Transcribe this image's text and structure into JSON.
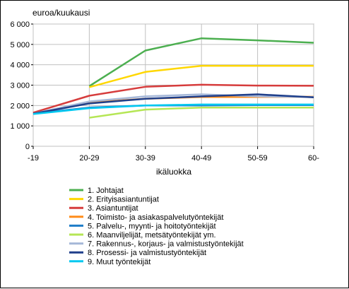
{
  "chart_data": {
    "type": "line",
    "ylabel": "euroa/kuukausi",
    "xlabel": "ikäluokka",
    "categories": [
      "-19",
      "20-29",
      "30-39",
      "40-49",
      "50-59",
      "60-"
    ],
    "ylim": [
      0,
      6000
    ],
    "yticks": [
      "0",
      "1 000",
      "2 000",
      "3 000",
      "4 000",
      "5 000",
      "6 000"
    ],
    "ytick_values": [
      0,
      1000,
      2000,
      3000,
      4000,
      5000,
      6000
    ],
    "grid": true,
    "legend_position": "bottom",
    "series": [
      {
        "name": "1. Johtajat",
        "color": "#4caf50",
        "values": [
          null,
          2950,
          4700,
          5300,
          5200,
          5080
        ]
      },
      {
        "name": "2. Erityisasiantuntijat",
        "color": "#ffd700",
        "values": [
          null,
          2900,
          3650,
          3950,
          3950,
          3950
        ]
      },
      {
        "name": "3. Asiantuntijat",
        "color": "#d63c3c",
        "values": [
          1650,
          2480,
          2920,
          3020,
          2980,
          2970
        ]
      },
      {
        "name": "4. Toimisto- ja asiakaspalvelutyöntekijät",
        "color": "#ff8c1a",
        "values": [
          1600,
          2150,
          2330,
          2420,
          2420,
          2430
        ]
      },
      {
        "name": "5. Palvelu-, myynti- ja hoitotyöntekijät",
        "color": "#1e7dc8",
        "values": [
          1600,
          1900,
          2000,
          2000,
          2020,
          2020
        ]
      },
      {
        "name": "6. Maanviljelijät, metsätyöntekijät ym.",
        "color": "#b5e655",
        "values": [
          null,
          1400,
          1800,
          1900,
          1900,
          1900
        ]
      },
      {
        "name": "7. Rakennus-, korjaus- ja valmistustyöntekijät",
        "color": "#a6b8d8",
        "values": [
          1600,
          2200,
          2450,
          2550,
          2450,
          2420
        ]
      },
      {
        "name": "8. Prosessi- ja valmistustyöntekijät",
        "color": "#1f3f8a",
        "values": [
          1600,
          2100,
          2330,
          2450,
          2550,
          2400
        ]
      },
      {
        "name": "9. Muut työntekijät",
        "color": "#00c8f0",
        "values": [
          1580,
          1870,
          2000,
          2050,
          2050,
          2050
        ]
      }
    ]
  }
}
